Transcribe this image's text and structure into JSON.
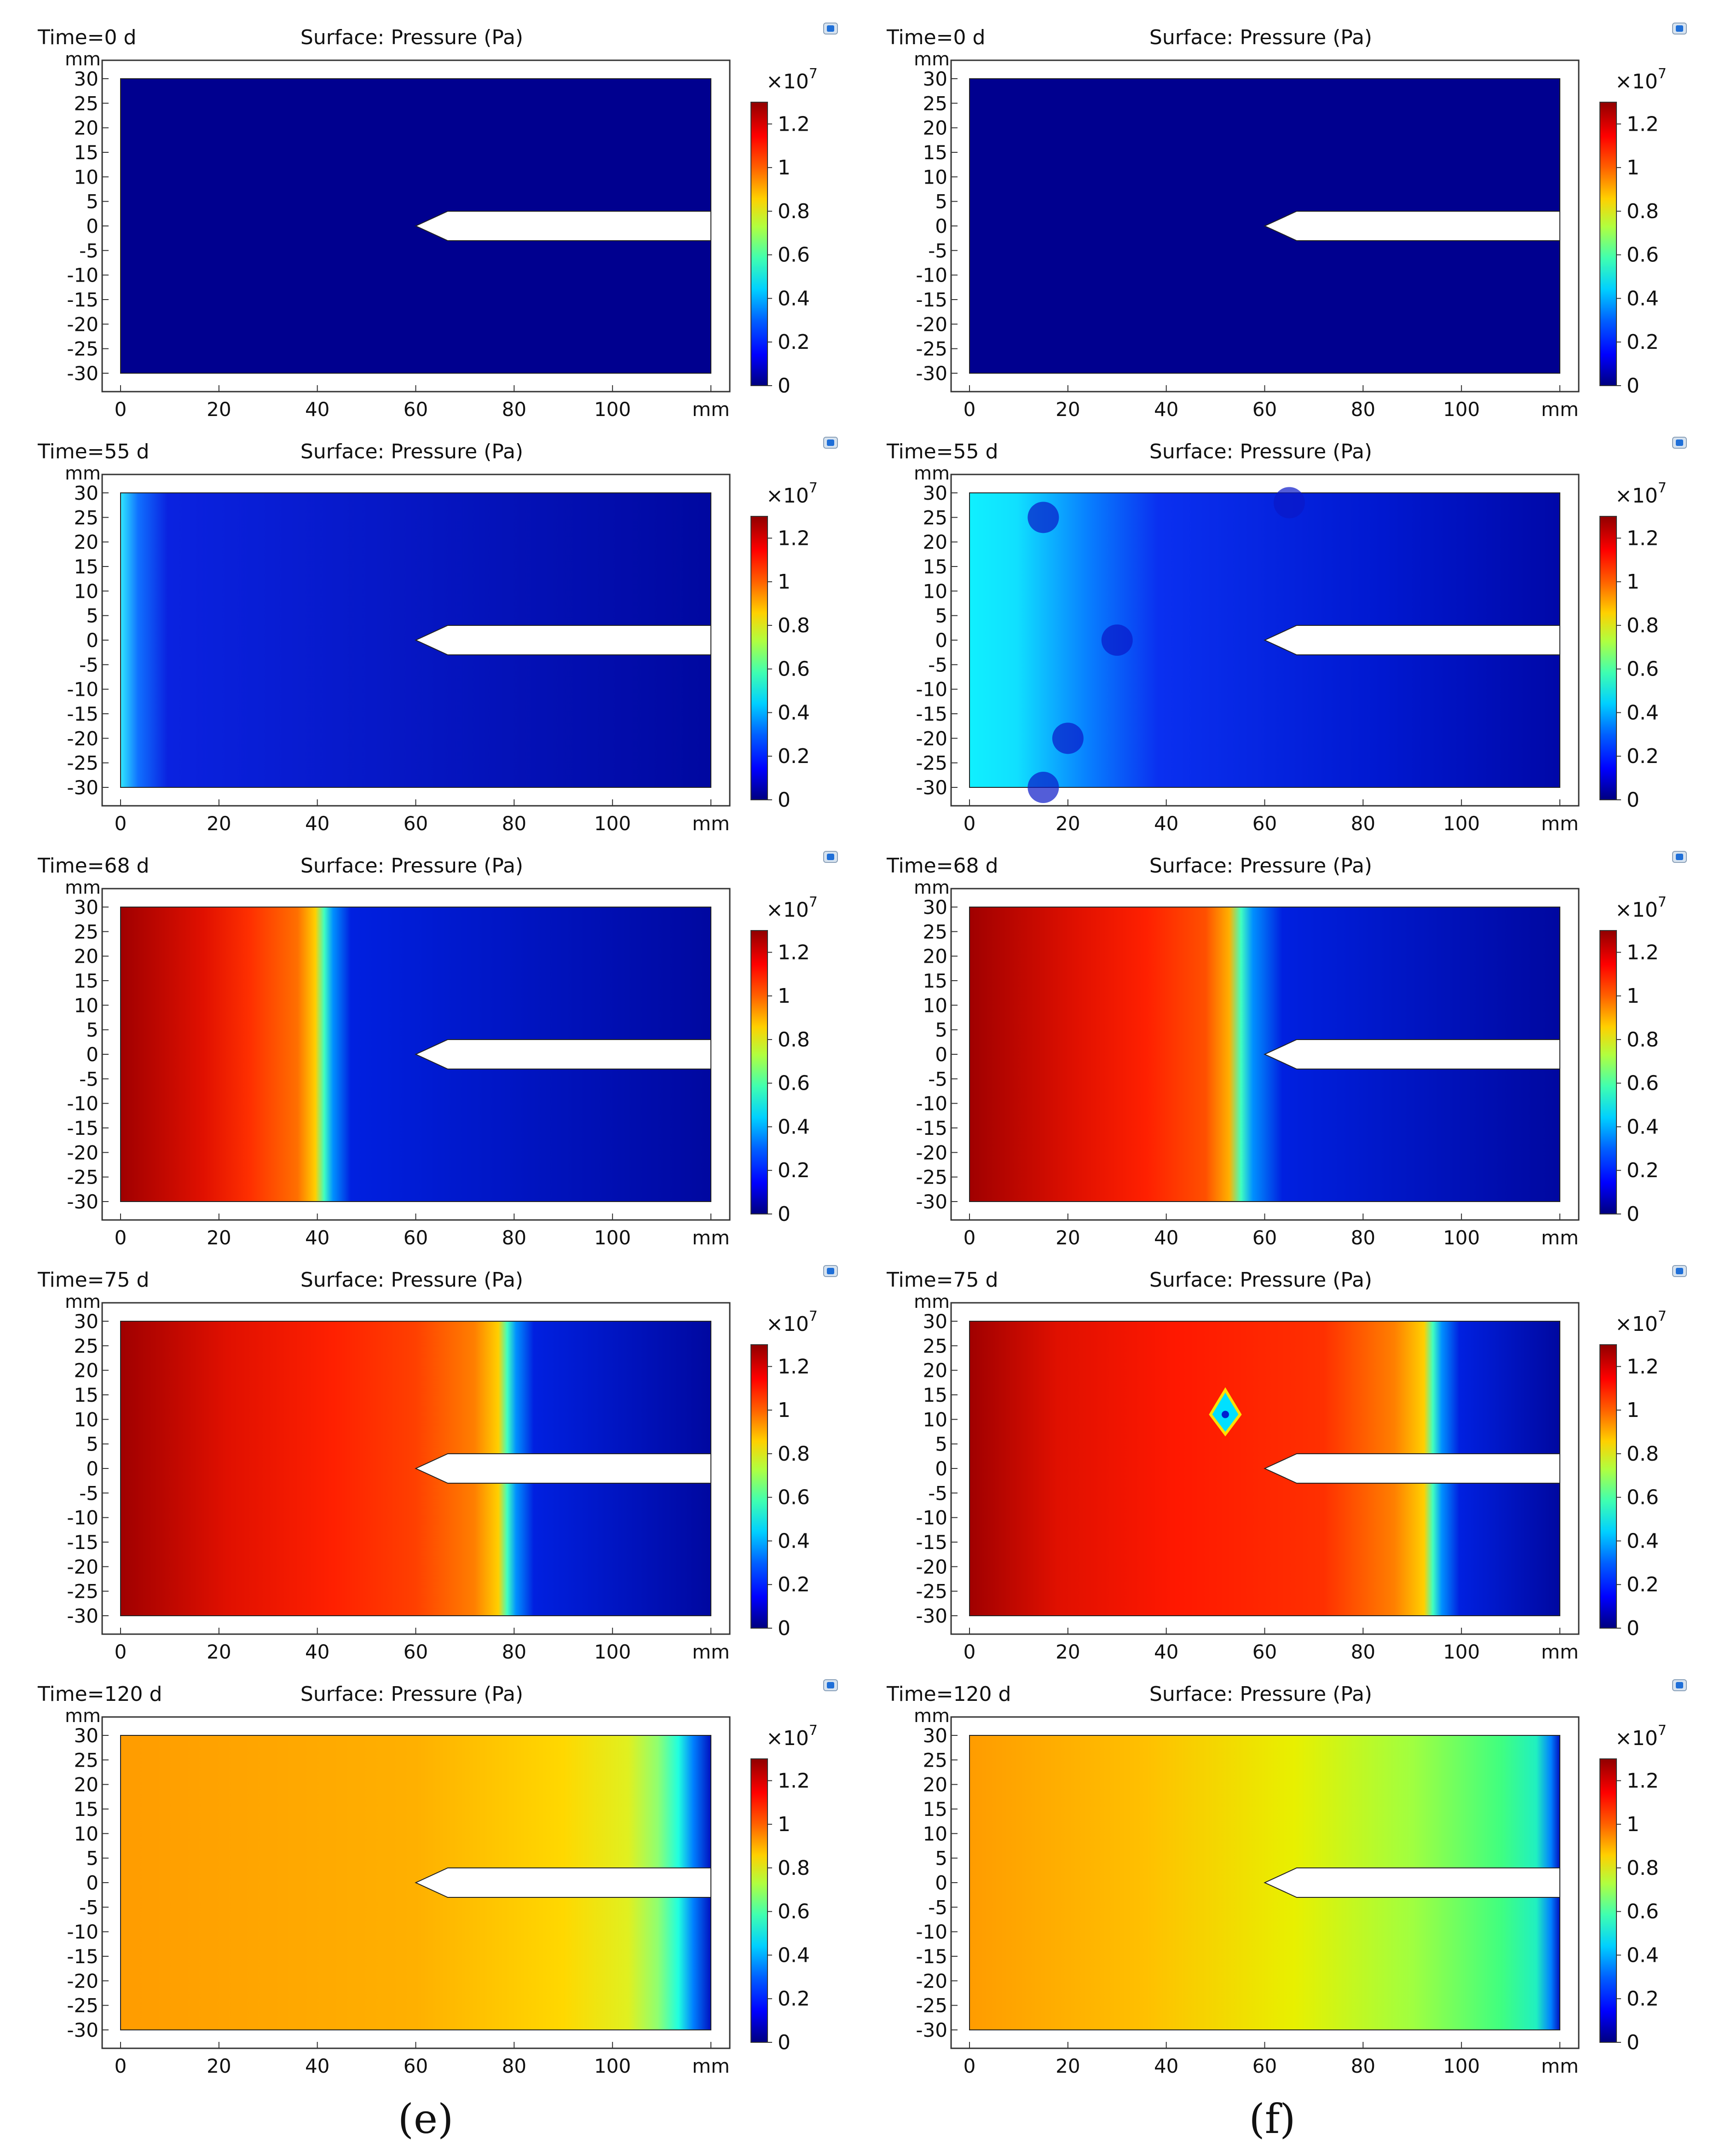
{
  "panel_labels": [
    "(e)",
    "(f)"
  ],
  "chart_data": {
    "type": "heatmap",
    "title_prefix": "Time=",
    "time_unit": " d",
    "plot_title": "Surface: Pressure (Pa)",
    "y_unit": "mm",
    "x_unit": "mm",
    "xlim": [
      0,
      120
    ],
    "ylim": [
      -30,
      30
    ],
    "x_ticks": [
      "0",
      "20",
      "40",
      "60",
      "80",
      "100",
      "mm"
    ],
    "y_ticks": [
      "30",
      "25",
      "20",
      "15",
      "10",
      "5",
      "0",
      "-5",
      "-10",
      "-15",
      "-20",
      "-25",
      "-30"
    ],
    "colorbar": {
      "multiplier_base": "×10",
      "multiplier_exp": "7",
      "ticks": [
        "1.2",
        "1",
        "0.8",
        "0.6",
        "0.4",
        "0.2",
        "0"
      ],
      "range": [
        0,
        1.3
      ]
    },
    "colors": {
      "jet": [
        "#00007f",
        "#0000ff",
        "#007fff",
        "#00ffff",
        "#7fff7f",
        "#ffff00",
        "#ff7f00",
        "#ff0000",
        "#7f0000"
      ]
    },
    "rows": [
      {
        "time": "0"
      },
      {
        "time": "55"
      },
      {
        "time": "68"
      },
      {
        "time": "75"
      },
      {
        "time": "120"
      }
    ],
    "panels": [
      {
        "column": "e",
        "time": 0,
        "front_x_mm": [],
        "max_pressure": 0
      },
      {
        "column": "f",
        "time": 0,
        "front_x_mm": [],
        "max_pressure": 0
      },
      {
        "column": "e",
        "time": 55,
        "front_x_mm": [
          0,
          2
        ],
        "max_pressure": 0.4
      },
      {
        "column": "f",
        "time": 55,
        "front_x_mm": [
          0,
          27
        ],
        "max_pressure": 0.35
      },
      {
        "column": "e",
        "time": 68,
        "front_x_mm": [
          32,
          53
        ],
        "max_pressure": 1.3
      },
      {
        "column": "f",
        "time": 68,
        "front_x_mm": [
          38,
          70
        ],
        "max_pressure": 1.3
      },
      {
        "column": "e",
        "time": 75,
        "front_x_mm": [
          70,
          85
        ],
        "max_pressure": 1.3
      },
      {
        "column": "f",
        "time": 75,
        "front_x_mm": [
          88,
          97
        ],
        "max_pressure": 1.3
      },
      {
        "column": "e",
        "time": 120,
        "front_x_mm": [
          112,
          120
        ],
        "max_pressure": 0.9
      },
      {
        "column": "f",
        "time": 120,
        "front_x_mm": [
          118,
          120
        ],
        "max_pressure": 0.85
      }
    ]
  }
}
